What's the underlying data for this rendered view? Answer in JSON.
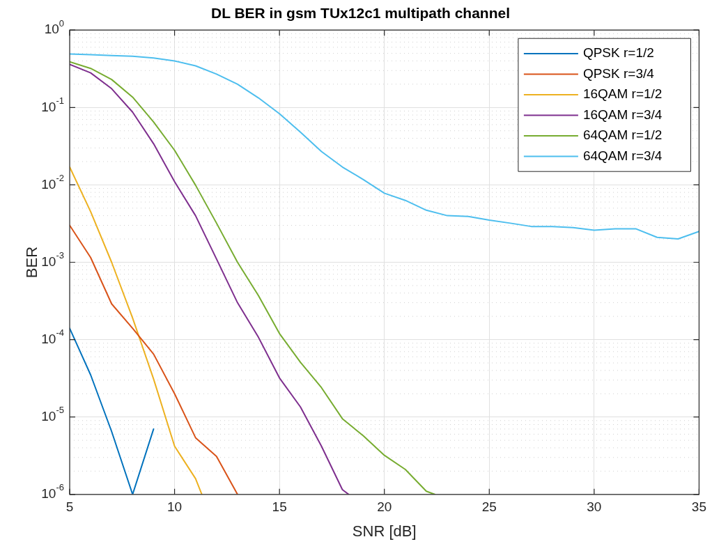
{
  "chart_data": {
    "type": "line",
    "title": "DL BER in gsm TUx12c1 multipath channel",
    "xlabel": "SNR [dB]",
    "ylabel": "BER",
    "log": "y",
    "grid": true,
    "legend": "top right",
    "line_style": "solid",
    "marker": "none",
    "xlim": [
      5,
      35
    ],
    "xticks": [
      5,
      10,
      15,
      20,
      25,
      30,
      35
    ],
    "ylim": [
      1e-06,
      1
    ],
    "yticks": [
      {
        "value": 1e-06,
        "label": "10$^{-6}$"
      },
      {
        "value": 1e-05,
        "label": "10$^{-5}$"
      },
      {
        "value": 0.0001,
        "label": "10$^{-4}$"
      },
      {
        "value": 0.001,
        "label": "10$^{-3}$"
      },
      {
        "value": 0.01,
        "label": "10$^{-2}$"
      },
      {
        "value": 0.1,
        "label": "10$^{-1}$"
      },
      {
        "value": 1,
        "label": "10$^{0}$"
      }
    ],
    "series": [
      {
        "name": "QPSK r=1/2",
        "color": "#0072bd",
        "x": [
          5,
          6,
          7,
          8,
          9
        ],
        "values": [
          0.00014,
          3.5e-05,
          6.5e-06,
          1e-06,
          7e-06
        ]
      },
      {
        "name": "QPSK r=3/4",
        "color": "#d95319",
        "x": [
          5,
          6,
          7,
          8,
          9,
          10,
          11,
          12,
          13
        ],
        "values": [
          0.003,
          0.00115,
          0.00029,
          0.00014,
          6.5e-05,
          2e-05,
          5.4e-06,
          3.1e-06,
          1e-06
        ]
      },
      {
        "name": "16QAM r=1/2",
        "color": "#edb120",
        "x": [
          5,
          6,
          7,
          8,
          9,
          10,
          11,
          11.3
        ],
        "values": [
          0.017,
          0.0045,
          0.001,
          0.00019,
          3.1e-05,
          4.2e-06,
          1.6e-06,
          1e-06
        ]
      },
      {
        "name": "16QAM r=3/4",
        "color": "#7e2f8e",
        "x": [
          5,
          6,
          7,
          8,
          9,
          10,
          11,
          12,
          13,
          14,
          15,
          16,
          17,
          18,
          18.3
        ],
        "values": [
          0.36,
          0.28,
          0.175,
          0.087,
          0.034,
          0.011,
          0.004,
          0.0011,
          0.0003,
          0.000107,
          3.2e-05,
          1.35e-05,
          4.2e-06,
          1.15e-06,
          1e-06
        ]
      },
      {
        "name": "64QAM r=1/2",
        "color": "#77ac30",
        "x": [
          5,
          6,
          7,
          8,
          9,
          10,
          11,
          12,
          13,
          14,
          15,
          16,
          17,
          18,
          19,
          20,
          21,
          22,
          22.4
        ],
        "values": [
          0.39,
          0.32,
          0.23,
          0.136,
          0.065,
          0.028,
          0.0099,
          0.0032,
          0.001,
          0.00037,
          0.00012,
          5.1e-05,
          2.4e-05,
          9.5e-06,
          5.7e-06,
          3.2e-06,
          2.1e-06,
          1.1e-06,
          1e-06
        ]
      },
      {
        "name": "64QAM r=3/4",
        "color": "#4dbeee",
        "x": [
          5,
          6,
          7,
          8,
          9,
          10,
          11,
          12,
          13,
          14,
          15,
          16,
          17,
          18,
          19,
          20,
          21,
          22,
          23,
          24,
          25,
          26,
          27,
          28,
          29,
          30,
          31,
          32,
          33,
          34,
          35
        ],
        "values": [
          0.49,
          0.48,
          0.47,
          0.46,
          0.435,
          0.4,
          0.345,
          0.27,
          0.2,
          0.133,
          0.083,
          0.048,
          0.027,
          0.017,
          0.0117,
          0.0078,
          0.0063,
          0.0047,
          0.004,
          0.0039,
          0.0035,
          0.0032,
          0.0029,
          0.0029,
          0.0028,
          0.0026,
          0.0027,
          0.0027,
          0.0021,
          0.002,
          0.0025
        ]
      }
    ]
  }
}
